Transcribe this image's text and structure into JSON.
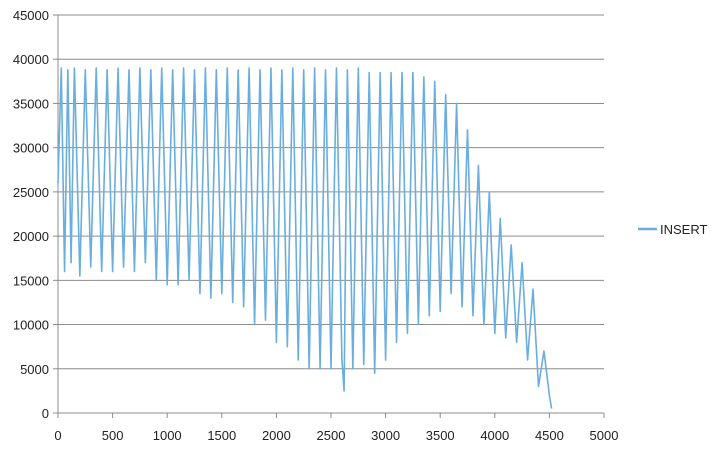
{
  "chart_data": {
    "type": "line",
    "title": "",
    "xlabel": "",
    "ylabel": "",
    "xlim": [
      0,
      5000
    ],
    "ylim": [
      0,
      45000
    ],
    "x_ticks": [
      0,
      500,
      1000,
      1500,
      2000,
      2500,
      3000,
      3500,
      4000,
      4500,
      5000
    ],
    "y_ticks": [
      0,
      5000,
      10000,
      15000,
      20000,
      25000,
      30000,
      35000,
      40000,
      45000
    ],
    "grid": "horizontal",
    "legend": "right",
    "series": [
      {
        "name": "INSERT",
        "color": "#6aaee0",
        "points": [
          [
            0,
            26000
          ],
          [
            30,
            39000
          ],
          [
            60,
            16000
          ],
          [
            90,
            38800
          ],
          [
            120,
            17000
          ],
          [
            150,
            39000
          ],
          [
            200,
            15500
          ],
          [
            250,
            38800
          ],
          [
            300,
            16500
          ],
          [
            350,
            39000
          ],
          [
            400,
            16000
          ],
          [
            450,
            38800
          ],
          [
            500,
            16000
          ],
          [
            550,
            39000
          ],
          [
            600,
            16500
          ],
          [
            650,
            38800
          ],
          [
            700,
            16000
          ],
          [
            750,
            39000
          ],
          [
            800,
            17000
          ],
          [
            850,
            38800
          ],
          [
            900,
            15000
          ],
          [
            950,
            39000
          ],
          [
            1000,
            14500
          ],
          [
            1050,
            38800
          ],
          [
            1100,
            14500
          ],
          [
            1150,
            39000
          ],
          [
            1200,
            15000
          ],
          [
            1250,
            38800
          ],
          [
            1300,
            13500
          ],
          [
            1350,
            39000
          ],
          [
            1400,
            13000
          ],
          [
            1450,
            38800
          ],
          [
            1500,
            13500
          ],
          [
            1550,
            39000
          ],
          [
            1600,
            12500
          ],
          [
            1650,
            38800
          ],
          [
            1700,
            12000
          ],
          [
            1750,
            39000
          ],
          [
            1800,
            10000
          ],
          [
            1850,
            38800
          ],
          [
            1900,
            10500
          ],
          [
            1950,
            39000
          ],
          [
            2000,
            8000
          ],
          [
            2050,
            38800
          ],
          [
            2100,
            7500
          ],
          [
            2150,
            39000
          ],
          [
            2200,
            6000
          ],
          [
            2250,
            38800
          ],
          [
            2300,
            5000
          ],
          [
            2350,
            39000
          ],
          [
            2400,
            5000
          ],
          [
            2450,
            38800
          ],
          [
            2500,
            5000
          ],
          [
            2550,
            39000
          ],
          [
            2600,
            6000
          ],
          [
            2620,
            2500
          ],
          [
            2650,
            38800
          ],
          [
            2700,
            5000
          ],
          [
            2750,
            39000
          ],
          [
            2800,
            5500
          ],
          [
            2850,
            38500
          ],
          [
            2900,
            4500
          ],
          [
            2950,
            38500
          ],
          [
            3000,
            6000
          ],
          [
            3050,
            38500
          ],
          [
            3100,
            8000
          ],
          [
            3150,
            38500
          ],
          [
            3200,
            9000
          ],
          [
            3250,
            38500
          ],
          [
            3300,
            10000
          ],
          [
            3350,
            38000
          ],
          [
            3400,
            11000
          ],
          [
            3450,
            37500
          ],
          [
            3500,
            11500
          ],
          [
            3550,
            36000
          ],
          [
            3600,
            13500
          ],
          [
            3650,
            35000
          ],
          [
            3700,
            12000
          ],
          [
            3750,
            32000
          ],
          [
            3800,
            11000
          ],
          [
            3850,
            28000
          ],
          [
            3900,
            10000
          ],
          [
            3950,
            25000
          ],
          [
            4000,
            9000
          ],
          [
            4050,
            22000
          ],
          [
            4100,
            8500
          ],
          [
            4150,
            19000
          ],
          [
            4200,
            8000
          ],
          [
            4250,
            17000
          ],
          [
            4300,
            6000
          ],
          [
            4350,
            14000
          ],
          [
            4400,
            3000
          ],
          [
            4450,
            7000
          ],
          [
            4500,
            2000
          ],
          [
            4520,
            500
          ]
        ]
      }
    ]
  }
}
